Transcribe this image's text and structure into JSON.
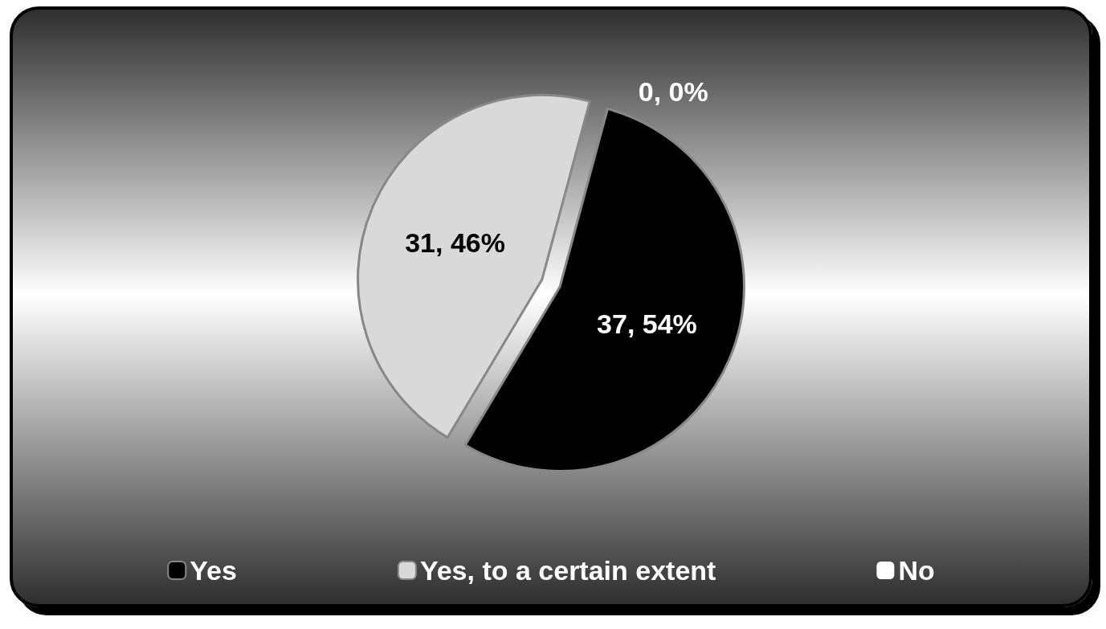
{
  "chart_data": {
    "type": "pie",
    "categories": [
      "Yes",
      "Yes, to a certain extent",
      "No"
    ],
    "values": [
      37,
      31,
      0
    ],
    "colors": [
      "#000000",
      "#d9d9d9",
      "#ffffff"
    ],
    "value_labels": [
      "37, 54%",
      "31, 46%",
      "0, 0%"
    ],
    "legend": "bottom"
  }
}
